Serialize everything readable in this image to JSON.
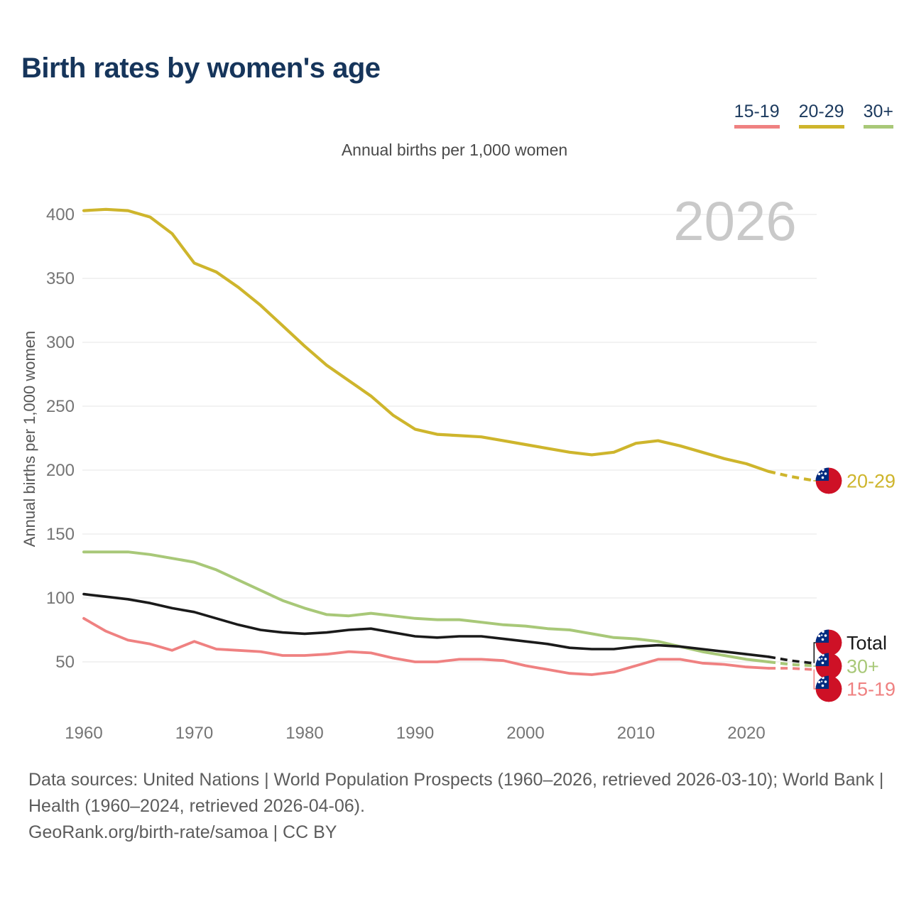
{
  "header": {
    "title": "Birth rates by women's age"
  },
  "legend": {
    "items": [
      {
        "label": "15-19",
        "color": "#ef8181"
      },
      {
        "label": "20-29",
        "color": "#ceb52c"
      },
      {
        "label": "30+",
        "color": "#a8c878"
      }
    ]
  },
  "subtitle": "Annual births per 1,000 women",
  "watermark": "2026",
  "chart_data": {
    "type": "line",
    "title": "Birth rates by women's age",
    "subtitle": "Annual births per 1,000 women",
    "xlabel": "",
    "ylabel": "Annual births per 1,000 women",
    "x": [
      1960,
      1962,
      1964,
      1966,
      1968,
      1970,
      1972,
      1974,
      1976,
      1978,
      1980,
      1982,
      1984,
      1986,
      1988,
      1990,
      1992,
      1994,
      1996,
      1998,
      2000,
      2002,
      2004,
      2006,
      2008,
      2010,
      2012,
      2014,
      2016,
      2018,
      2020,
      2022,
      2024,
      2026
    ],
    "series": [
      {
        "name": "20-29",
        "color": "#ceb52c",
        "values": [
          403,
          404,
          403,
          398,
          385,
          362,
          355,
          343,
          329,
          313,
          297,
          282,
          270,
          258,
          243,
          232,
          228,
          227,
          226,
          223,
          220,
          217,
          214,
          212,
          214,
          221,
          223,
          219,
          214,
          209,
          205,
          199,
          195,
          192
        ]
      },
      {
        "name": "30+",
        "color": "#a8c878",
        "values": [
          136,
          136,
          136,
          134,
          131,
          128,
          122,
          114,
          106,
          98,
          92,
          87,
          86,
          88,
          86,
          84,
          83,
          83,
          81,
          79,
          78,
          76,
          75,
          72,
          69,
          68,
          66,
          62,
          58,
          55,
          52,
          50,
          48,
          47
        ]
      },
      {
        "name": "Total",
        "color": "#1a1a1a",
        "values": [
          103,
          101,
          99,
          96,
          92,
          89,
          84,
          79,
          75,
          73,
          72,
          73,
          75,
          76,
          73,
          70,
          69,
          70,
          70,
          68,
          66,
          64,
          61,
          60,
          60,
          62,
          63,
          62,
          60,
          58,
          56,
          54,
          51,
          49
        ]
      },
      {
        "name": "15-19",
        "color": "#ef8181",
        "values": [
          84,
          74,
          67,
          64,
          59,
          66,
          60,
          59,
          58,
          55,
          55,
          56,
          58,
          57,
          53,
          50,
          50,
          52,
          52,
          51,
          47,
          44,
          41,
          40,
          42,
          47,
          52,
          52,
          49,
          48,
          46,
          45,
          45,
          44
        ]
      }
    ],
    "x_ticks": [
      1960,
      1970,
      1980,
      1990,
      2000,
      2010,
      2020
    ],
    "y_ticks": [
      50,
      100,
      150,
      200,
      250,
      300,
      350,
      400
    ],
    "xlim": [
      1960,
      2026
    ],
    "ylim": [
      50,
      400
    ],
    "grid": "horizontal",
    "legend_position": "top-right",
    "projection_from": 2022,
    "end_labels": [
      "20-29",
      "Total",
      "30+",
      "15-19"
    ],
    "end_marker": "samoa-flag"
  },
  "footer": {
    "sources": "Data sources: United Nations | World Population Prospects (1960–2026, retrieved 2026-03-10); World Bank | Health (1960–2024, retrieved 2026-04-06).",
    "credit": "GeoRank.org/birth-rate/samoa | CC BY"
  },
  "colors": {
    "title": "#16355b",
    "legend_text": "#1c3a5e",
    "subtitle": "#4a4a4a",
    "axis_title": "#565656",
    "tick_label": "#757575",
    "grid": "#ebebeb",
    "watermark": "#c9c9c9",
    "footer": "#5c5c5c",
    "flag_red": "#ce1126",
    "flag_blue": "#002b7f"
  }
}
